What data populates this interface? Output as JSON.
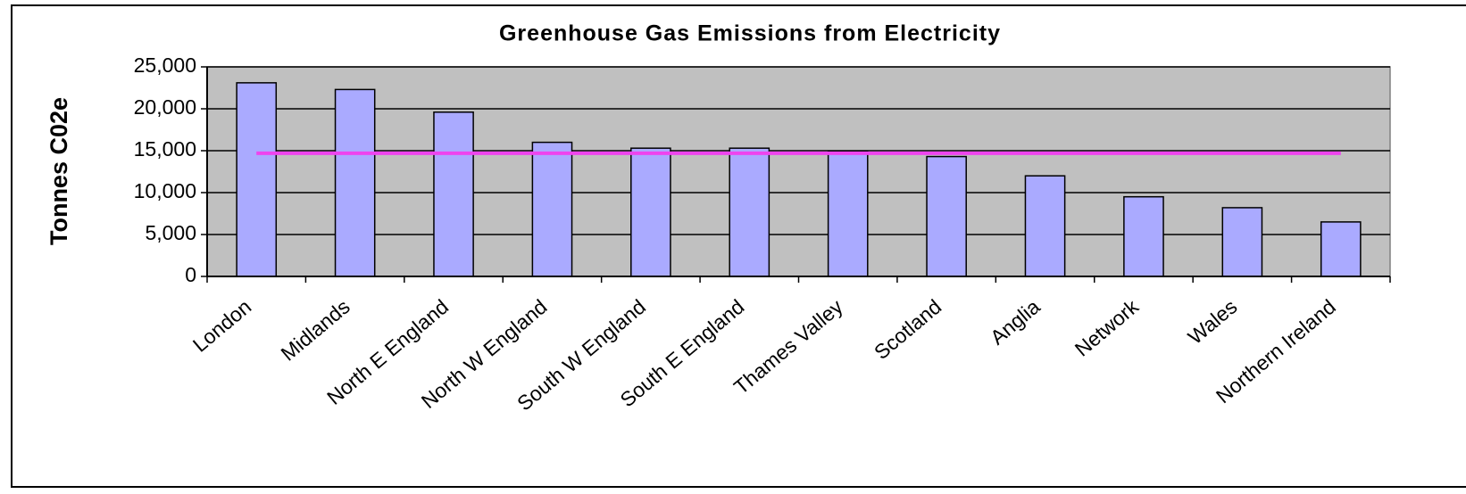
{
  "chart_data": {
    "type": "bar",
    "title": "Greenhouse Gas Emissions from Electricity",
    "y_label": "Tonnes C02e",
    "categories": [
      "London",
      "Midlands",
      "North E England",
      "North W England",
      "South W England",
      "South E England",
      "Thames Valley",
      "Scotland",
      "Anglia",
      "Network",
      "Wales",
      "Northern Ireland"
    ],
    "values": [
      23100,
      22300,
      19600,
      16000,
      15300,
      15300,
      14900,
      14300,
      12000,
      9500,
      8200,
      6500
    ],
    "color": "#aaaaff",
    "reference_line": {
      "value": 14700,
      "color": "#ee44ee"
    },
    "ylim": [
      0,
      25000
    ],
    "yticks": [
      0,
      {
        "value": 5000,
        "label": "5,000"
      },
      {
        "value": 10000,
        "label": "10,000"
      },
      {
        "value": 15000,
        "label": "15,000"
      },
      {
        "value": 20000,
        "label": "20,000"
      },
      {
        "value": 25000,
        "label": "25,000"
      }
    ],
    "grid": true,
    "plot_background": "#c0c0c0"
  }
}
